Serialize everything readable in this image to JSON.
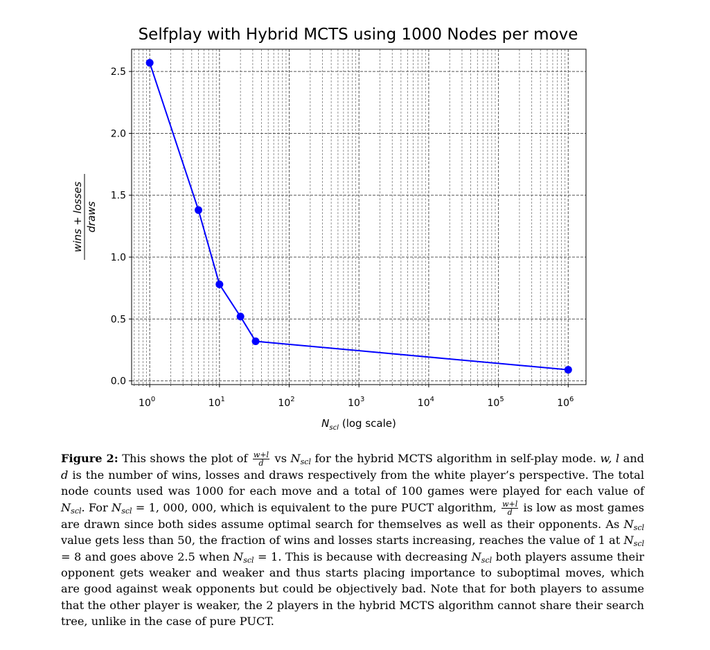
{
  "chart_data": {
    "type": "line",
    "title": "Selfplay with Hybrid MCTS using 1000 Nodes per move",
    "xlabel": "(log scale)",
    "xlabel_symbol": "N",
    "xlabel_sub": "scl",
    "ylabel_numerator": "wins + losses",
    "ylabel_denominator": "draws",
    "x_scale": "log",
    "xlim": [
      0.55,
      1800000
    ],
    "ylim": [
      -0.03,
      2.68
    ],
    "x_ticks": [
      {
        "value": 1,
        "base": "10",
        "exp": "0"
      },
      {
        "value": 10,
        "base": "10",
        "exp": "1"
      },
      {
        "value": 100,
        "base": "10",
        "exp": "2"
      },
      {
        "value": 1000,
        "base": "10",
        "exp": "3"
      },
      {
        "value": 10000,
        "base": "10",
        "exp": "4"
      },
      {
        "value": 100000,
        "base": "10",
        "exp": "5"
      },
      {
        "value": 1000000,
        "base": "10",
        "exp": "6"
      }
    ],
    "y_ticks": [
      {
        "value": 0.0,
        "label": "0.0"
      },
      {
        "value": 0.5,
        "label": "0.5"
      },
      {
        "value": 1.0,
        "label": "1.0"
      },
      {
        "value": 1.5,
        "label": "1.5"
      },
      {
        "value": 2.0,
        "label": "2.0"
      },
      {
        "value": 2.5,
        "label": "2.5"
      }
    ],
    "grid": true,
    "grid_minor": true,
    "series": [
      {
        "color": "#0000ff",
        "x": [
          1,
          5,
          10,
          20,
          33,
          1000000
        ],
        "y": [
          2.57,
          1.38,
          0.78,
          0.52,
          0.32,
          0.09
        ]
      }
    ]
  },
  "caption": {
    "label": "Figure 2:",
    "p1": "This shows the plot of",
    "frac_num": "w+l",
    "frac_den": "d",
    "vs": "vs",
    "N": "N",
    "scl": "scl",
    "p2": "for the hybrid MCTS algorithm in self-play mode.",
    "wld": "w, l",
    "and": "and",
    "d": "d",
    "p3": "is the number of wins, losses and draws respectively from the white player’s perspective. The total node counts used was 1000 for each move and a total of 100 games were played for each value of",
    "p4": ". For",
    "eq1": "= 1, 000, 000,",
    "p5": "which is equivalent to the pure PUCT algorithm,",
    "p6": "is low as most games are drawn since both sides assume optimal search for themselves as well as their opponents. As",
    "p7": "value gets less than 50, the fraction of wins and losses starts increasing, reaches the value of 1 at",
    "eq2": "= 8",
    "p8": "and goes above 2.5 when",
    "eq3": "= 1.",
    "p9": "This is because with decreasing",
    "p10": "both players assume their opponent gets weaker and weaker and thus starts placing importance to suboptimal moves, which are good against weak opponents but could be objectively bad. Note that for both players to assume that the other player is weaker, the 2 players in the hybrid MCTS algorithm cannot share their search tree, unlike in the case of pure PUCT."
  }
}
